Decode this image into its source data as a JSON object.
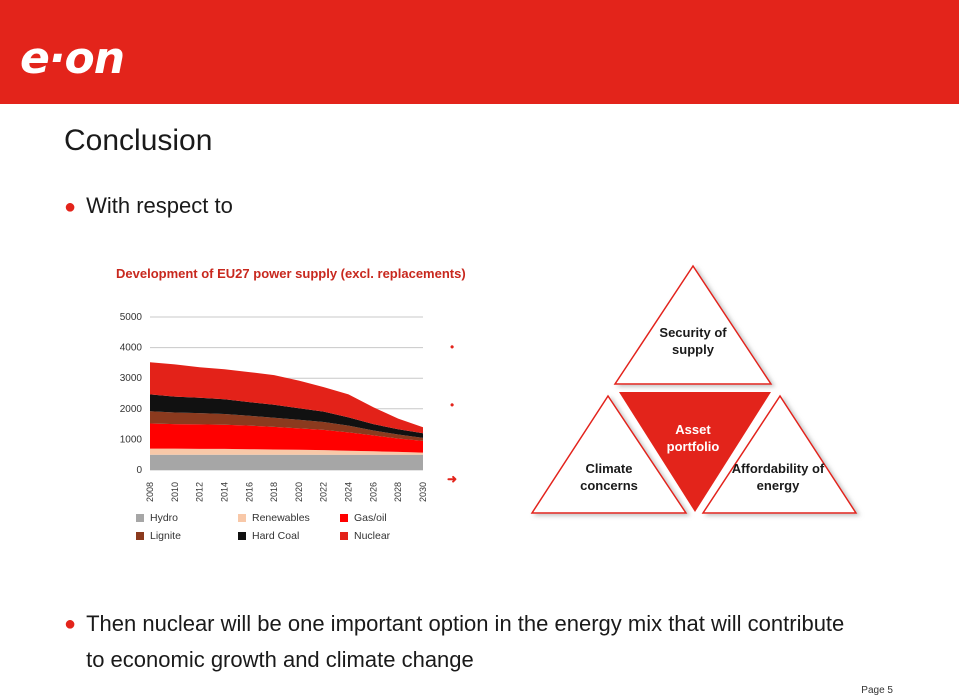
{
  "logo_text": "e·on",
  "slide_title": "Conclusion",
  "bullets": {
    "first": "With respect to",
    "second": "Then nuclear will be one important option in the energy mix that will contribute to economic growth and climate change"
  },
  "page_label": "Page 5",
  "triangle": {
    "top": "Security of supply",
    "center": "Asset portfolio",
    "left": "Climate concerns",
    "right": "Affordability of energy"
  },
  "colors": {
    "brand_red": "#e3241b",
    "hydro": "#a6a6a6",
    "renewables": "#f8c8a8",
    "gas_oil": "#ff0000",
    "lignite": "#8b3a1e",
    "hard_coal": "#111111",
    "nuclear": "#e32219"
  },
  "chart_data": {
    "type": "area",
    "title": "Development of EU27 power supply (excl. replacements)",
    "x": [
      "2008",
      "2010",
      "2012",
      "2014",
      "2016",
      "2018",
      "2020",
      "2022",
      "2024",
      "2026",
      "2028",
      "2030"
    ],
    "ylim": [
      0,
      5000
    ],
    "yticks": [
      0,
      1000,
      2000,
      3000,
      4000,
      5000
    ],
    "grid": true,
    "legend_position": "bottom",
    "series": [
      {
        "name": "Hydro",
        "color": "#a6a6a6",
        "values": [
          500,
          500,
          500,
          500,
          500,
          500,
          500,
          500,
          500,
          500,
          500,
          500
        ]
      },
      {
        "name": "Renewables",
        "color": "#f8c8a8",
        "values": [
          200,
          200,
          190,
          190,
          180,
          170,
          160,
          150,
          130,
          110,
          90,
          70
        ]
      },
      {
        "name": "Gas/oil",
        "color": "#ff0000",
        "values": [
          820,
          800,
          800,
          790,
          770,
          740,
          700,
          660,
          600,
          520,
          440,
          380
        ]
      },
      {
        "name": "Lignite",
        "color": "#8b3a1e",
        "values": [
          400,
          380,
          370,
          350,
          320,
          300,
          280,
          260,
          220,
          160,
          130,
          100
        ]
      },
      {
        "name": "Hard Coal",
        "color": "#111111",
        "values": [
          550,
          520,
          500,
          480,
          450,
          420,
          380,
          340,
          270,
          210,
          170,
          150
        ]
      },
      {
        "name": "Nuclear",
        "color": "#e32219",
        "values": [
          1050,
          1050,
          1000,
          980,
          980,
          970,
          900,
          800,
          750,
          550,
          350,
          200
        ]
      }
    ]
  }
}
